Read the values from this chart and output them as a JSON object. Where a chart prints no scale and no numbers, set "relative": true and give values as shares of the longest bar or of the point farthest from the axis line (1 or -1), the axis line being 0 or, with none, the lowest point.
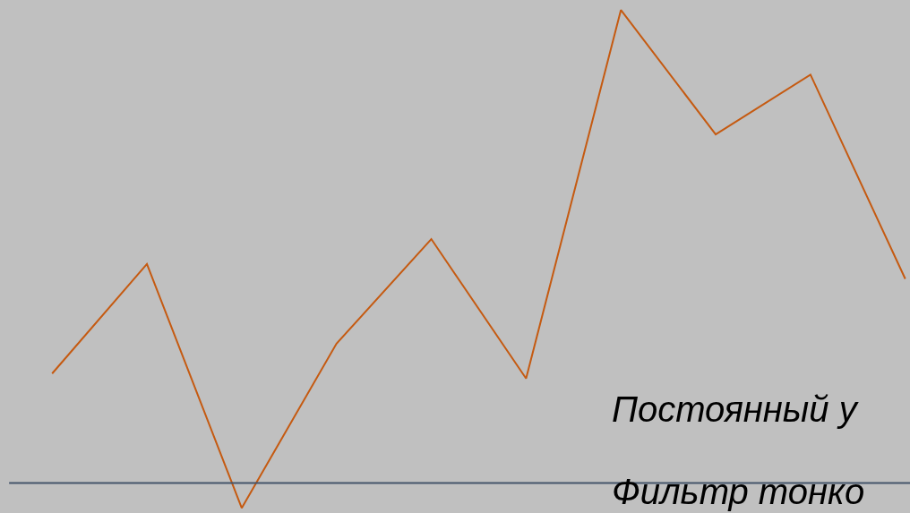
{
  "chart_data": {
    "type": "line",
    "relative": true,
    "categories": [
      null,
      null,
      null,
      null,
      null,
      null,
      null,
      null,
      null,
      null
    ],
    "series": [
      {
        "color": "#c55a11",
        "values": [
          0.27,
          0.49,
          0,
          0.33,
          0.54,
          0.26,
          1,
          0.75,
          0.87,
          0.46
        ]
      }
    ],
    "ref_lines": [
      {
        "axis": "y",
        "value": 0.05,
        "color": "#44546a"
      }
    ],
    "annotations": [
      "Постоянный у",
      "Фильтр тонко"
    ]
  }
}
